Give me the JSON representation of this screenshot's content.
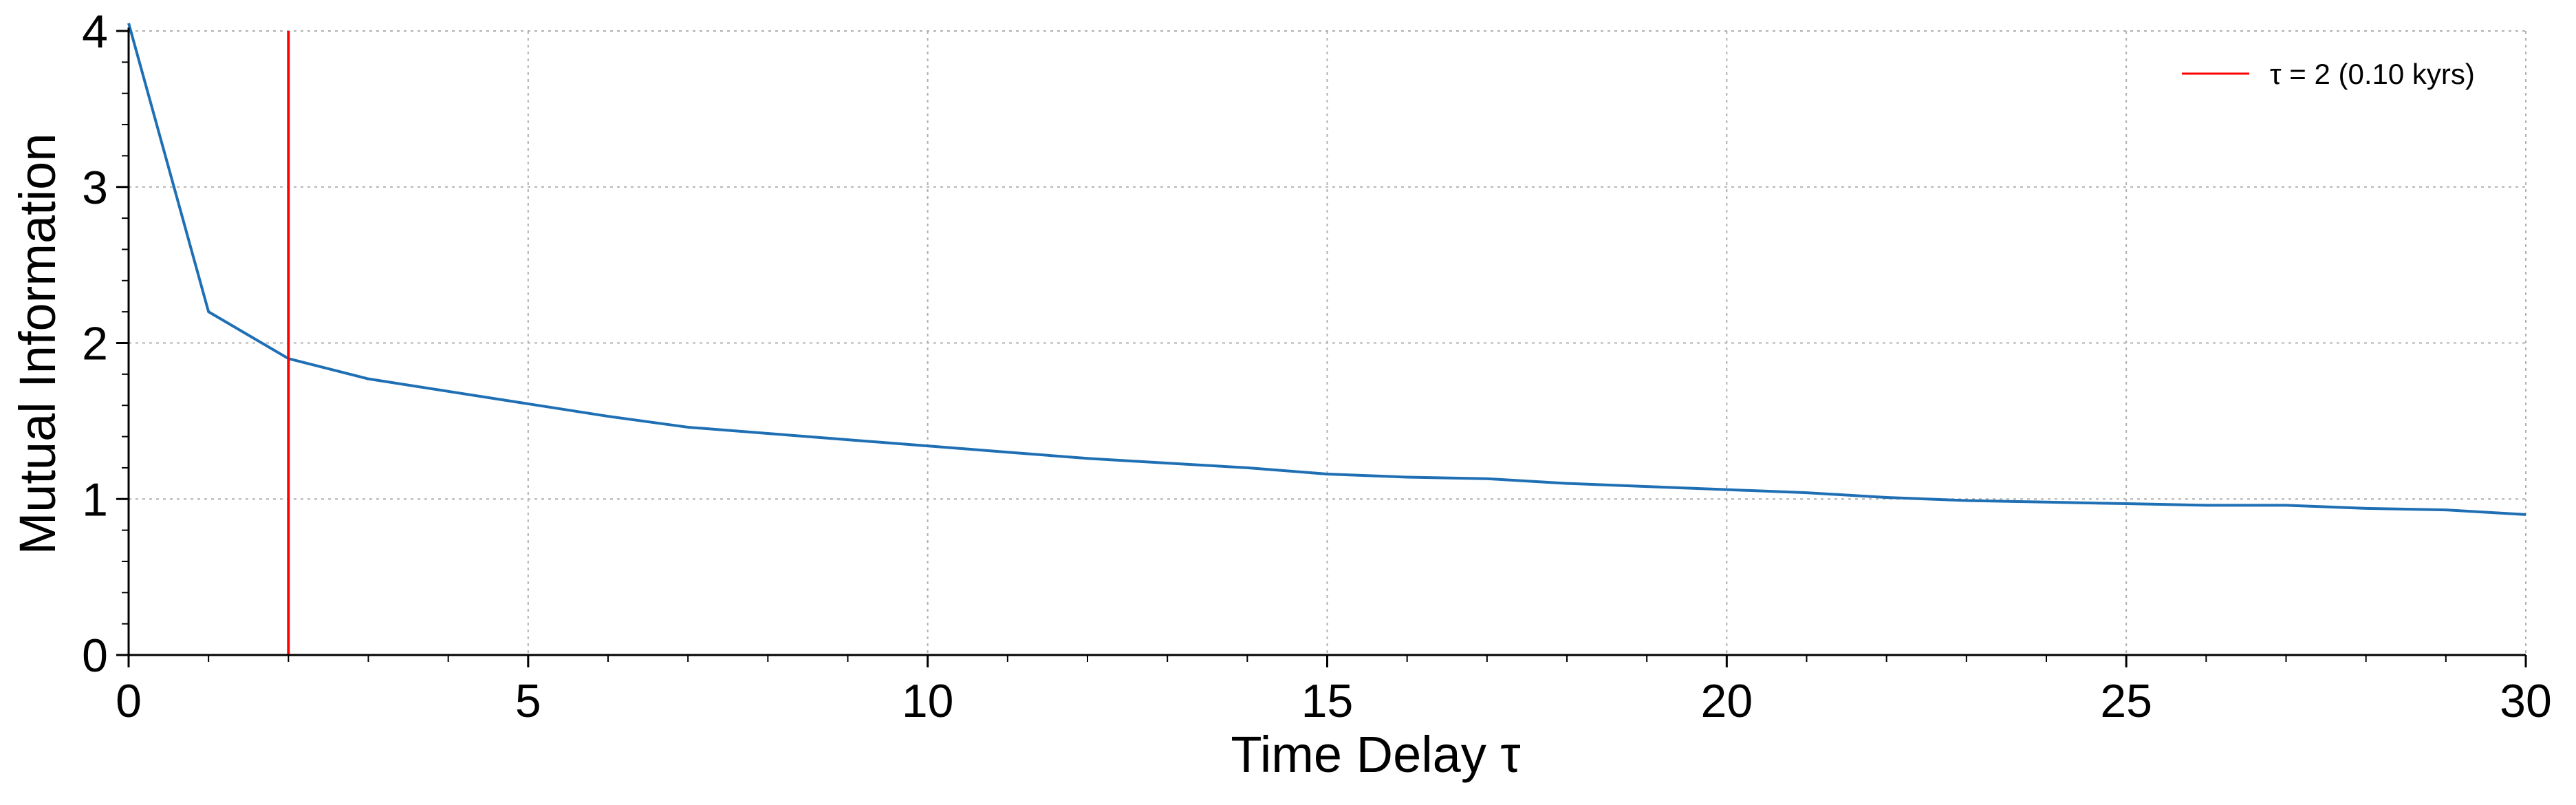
{
  "chart_data": {
    "type": "line",
    "title": "",
    "xlabel": "Time Delay τ",
    "ylabel": "Mutual Information",
    "xlim": [
      0,
      30
    ],
    "ylim": [
      0,
      4
    ],
    "x_ticks": [
      0,
      5,
      10,
      15,
      20,
      25,
      30
    ],
    "y_ticks": [
      0,
      1,
      2,
      3,
      4
    ],
    "grid": true,
    "legend_position": "top-right",
    "series": [
      {
        "color": "#1f6fb4",
        "x": [
          0,
          1,
          2,
          3,
          4,
          5,
          6,
          7,
          8,
          9,
          10,
          11,
          12,
          13,
          14,
          15,
          16,
          17,
          18,
          19,
          20,
          21,
          22,
          23,
          24,
          25,
          26,
          27,
          28,
          29,
          30
        ],
        "values": [
          4.05,
          2.2,
          1.9,
          1.77,
          1.69,
          1.61,
          1.53,
          1.46,
          1.42,
          1.38,
          1.34,
          1.3,
          1.26,
          1.23,
          1.2,
          1.16,
          1.14,
          1.13,
          1.1,
          1.08,
          1.06,
          1.04,
          1.01,
          0.99,
          0.98,
          0.97,
          0.96,
          0.96,
          0.94,
          0.93,
          0.9
        ]
      }
    ],
    "vline": {
      "x": 2,
      "color": "#ff0000",
      "label": "τ = 2 (0.10 kyrs)"
    }
  }
}
